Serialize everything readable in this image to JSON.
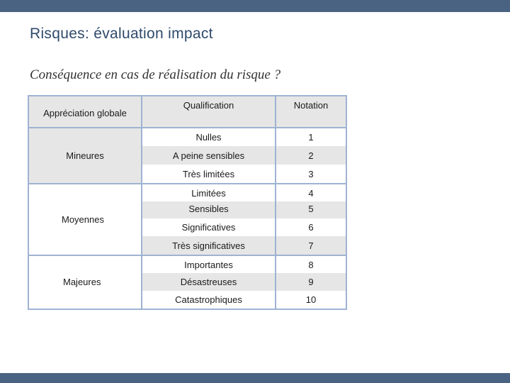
{
  "slide": {
    "title": "Risques: évaluation impact",
    "subtitle": "Conséquence en cas de réalisation du risque ?"
  },
  "table": {
    "headers": {
      "appreciation": "Appréciation globale",
      "qualification": "Qualification",
      "notation": "Notation"
    },
    "groups": [
      "Mineures",
      "Moyennes",
      "Majeures"
    ],
    "rows": [
      {
        "qualification": "Nulles",
        "notation": "1"
      },
      {
        "qualification": "A peine sensibles",
        "notation": "2"
      },
      {
        "qualification": "Très limitées",
        "notation": "3"
      },
      {
        "qualification": "Limitées",
        "notation": "4"
      },
      {
        "qualification": "Sensibles",
        "notation": "5"
      },
      {
        "qualification": "Significatives",
        "notation": "6"
      },
      {
        "qualification": "Très significatives",
        "notation": "7"
      },
      {
        "qualification": "Importantes",
        "notation": "8"
      },
      {
        "qualification": "Désastreuses",
        "notation": "9"
      },
      {
        "qualification": "Catastrophiques",
        "notation": "10"
      }
    ]
  }
}
